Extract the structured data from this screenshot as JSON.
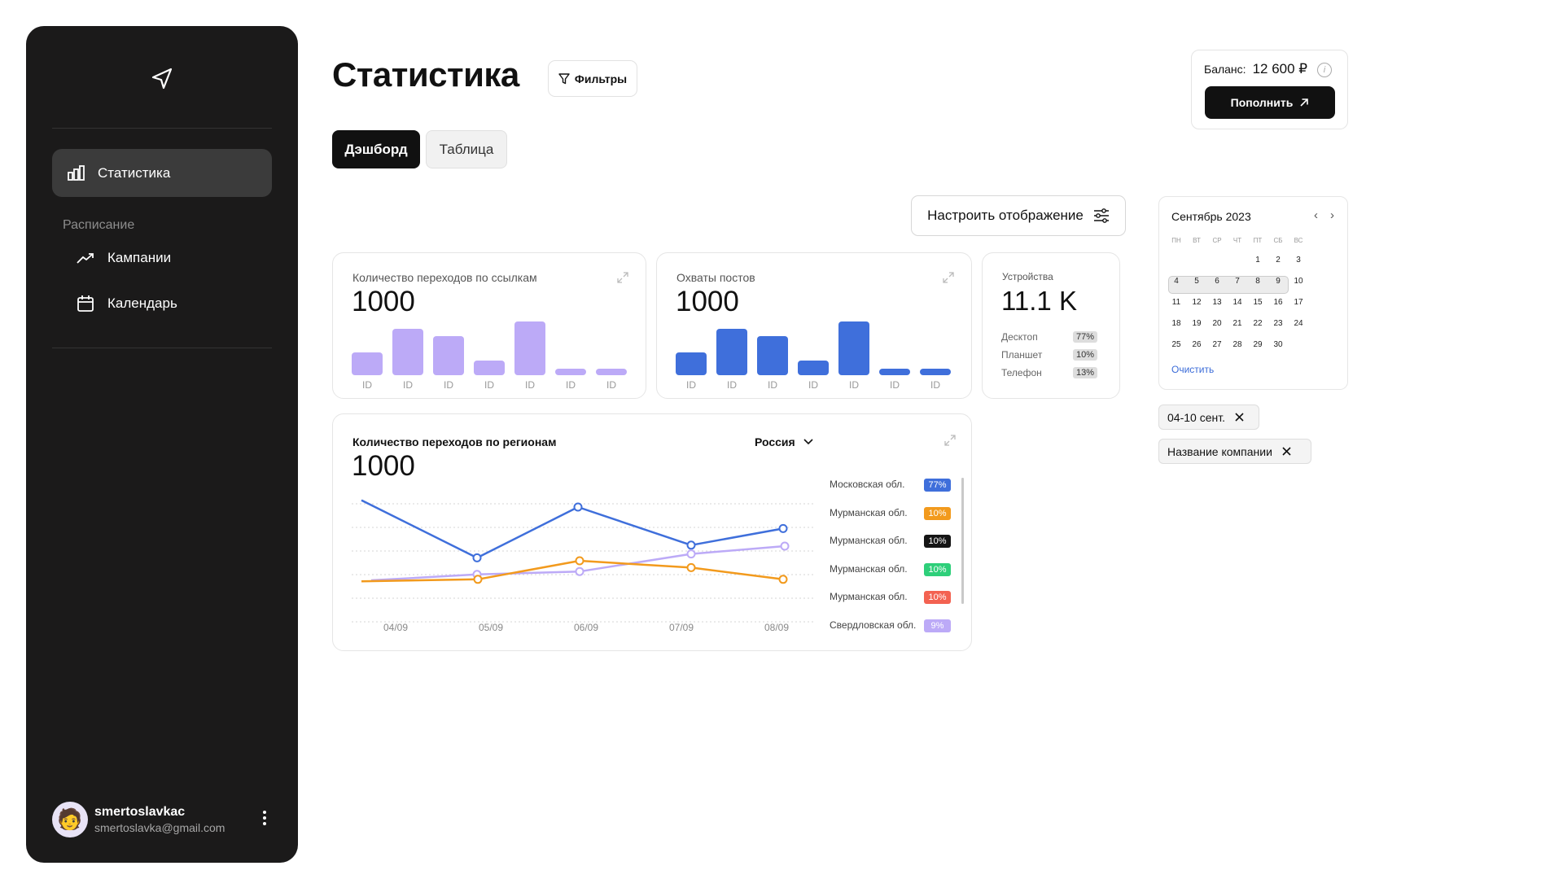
{
  "sidebar": {
    "nav_active_label": "Статистика",
    "section_label": "Расписание",
    "items": [
      {
        "label": "Кампании",
        "icon": "trend-icon"
      },
      {
        "label": "Календарь",
        "icon": "calendar-icon"
      }
    ],
    "user": {
      "name": "smertoslavkac",
      "email": "smertoslavka@gmail.com"
    }
  },
  "header": {
    "title": "Статистика",
    "filters_label": "Фильтры"
  },
  "balance": {
    "label": "Баланс:",
    "value": "12 600 ₽",
    "topup_label": "Пополнить"
  },
  "tabs": [
    {
      "label": "Дэшборд",
      "active": true
    },
    {
      "label": "Таблица",
      "active": false
    }
  ],
  "configure_label": "Настроить отображение",
  "cards": {
    "links": {
      "title": "Количество переходов по ссылкам",
      "value": "1000",
      "bar_color": "#bcaaf7"
    },
    "reach": {
      "title": "Охваты постов",
      "value": "1000",
      "bar_color": "#3f6fdb"
    },
    "devices": {
      "title": "Устройства",
      "value": "11.1 K",
      "rows": [
        {
          "label": "Десктоп",
          "pct": "77%"
        },
        {
          "label": "Планшет",
          "pct": "10%"
        },
        {
          "label": "Телефон",
          "pct": "13%"
        }
      ]
    },
    "regions": {
      "title": "Количество переходов по регионам",
      "value": "1000",
      "select": "Россия",
      "legend": [
        {
          "label": "Московская обл.",
          "pct": "77%",
          "color": "#3f6fdb"
        },
        {
          "label": "Мурманская обл.",
          "pct": "10%",
          "color": "#f29a1d"
        },
        {
          "label": "Мурманская обл.",
          "pct": "10%",
          "color": "#151515"
        },
        {
          "label": "Мурманская обл.",
          "pct": "10%",
          "color": "#2ecf7a"
        },
        {
          "label": "Мурманская обл.",
          "pct": "10%",
          "color": "#f36251"
        },
        {
          "label": "Свердловская обл.",
          "pct": "9%",
          "color": "#bcaaf7"
        }
      ]
    }
  },
  "chart_data": [
    {
      "type": "bar",
      "categories": [
        "ID",
        "ID",
        "ID",
        "ID",
        "ID",
        "ID",
        "ID"
      ],
      "values": [
        26,
        53,
        44,
        17,
        61,
        6,
        6
      ]
    },
    {
      "type": "bar",
      "categories": [
        "ID",
        "ID",
        "ID",
        "ID",
        "ID",
        "ID",
        "ID"
      ],
      "values": [
        26,
        53,
        44,
        17,
        61,
        6,
        6
      ]
    },
    {
      "type": "line",
      "x": [
        "04/09",
        "05/09",
        "06/09",
        "07/09",
        "08/09"
      ],
      "series": [
        {
          "color": "#3f6fdb",
          "values": [
            102,
            43,
            95,
            56,
            73
          ]
        },
        {
          "color": "#bcaaf7",
          "values": [
            20,
            26,
            29,
            47,
            55
          ]
        },
        {
          "color": "#f29a1d",
          "values": [
            19,
            21,
            40,
            33,
            21
          ]
        }
      ],
      "ylim": [
        0,
        100
      ],
      "grid": true
    }
  ],
  "calendar": {
    "title": "Сентябрь 2023",
    "weekdays": [
      "ПН",
      "ВТ",
      "СР",
      "ЧТ",
      "ПТ",
      "СБ",
      "ВС"
    ],
    "days": [
      "1",
      "2",
      "3",
      "4",
      "5",
      "6",
      "7",
      "8",
      "9",
      "10",
      "11",
      "12",
      "13",
      "14",
      "15",
      "16",
      "17",
      "18",
      "19",
      "20",
      "21",
      "22",
      "23",
      "24",
      "25",
      "26",
      "27",
      "28",
      "29",
      "30"
    ],
    "start_offset": 4,
    "selected_range": [
      "4",
      "8"
    ],
    "clear_label": "Очистить"
  },
  "chips": [
    {
      "label": "04-10 сент."
    },
    {
      "label": "Название компании"
    }
  ]
}
